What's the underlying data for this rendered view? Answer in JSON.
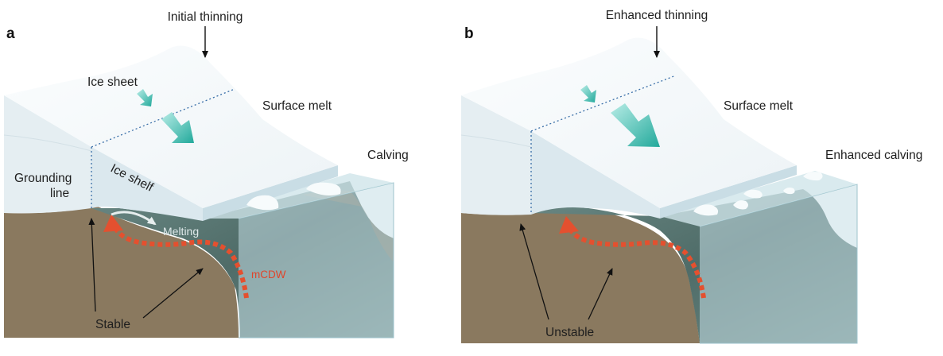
{
  "panel_a": {
    "letter": "a",
    "initial_thinning": "Initial thinning",
    "ice_sheet": "Ice sheet",
    "surface_melt": "Surface melt",
    "calving": "Calving",
    "grounding_line_1": "Grounding",
    "grounding_line_2": "line",
    "ice_shelf": "Ice shelf",
    "melting": "Melting",
    "mcdw": "mCDW",
    "stable": "Stable"
  },
  "panel_b": {
    "letter": "b",
    "enhanced_thinning": "Enhanced thinning",
    "surface_melt": "Surface melt",
    "enhanced_calving": "Enhanced calving",
    "unstable": "Unstable"
  },
  "colors": {
    "ice_top": "#f6fafb",
    "ice_side": "#e7f0f4",
    "ice_front": "#d8e8ee",
    "water_side": "#c3dde4",
    "water_deep": "#587671",
    "bedrock": "#8b7a62",
    "mcdw_arrow": "#e4502f",
    "flow_arrow": "#3ab9ad"
  }
}
